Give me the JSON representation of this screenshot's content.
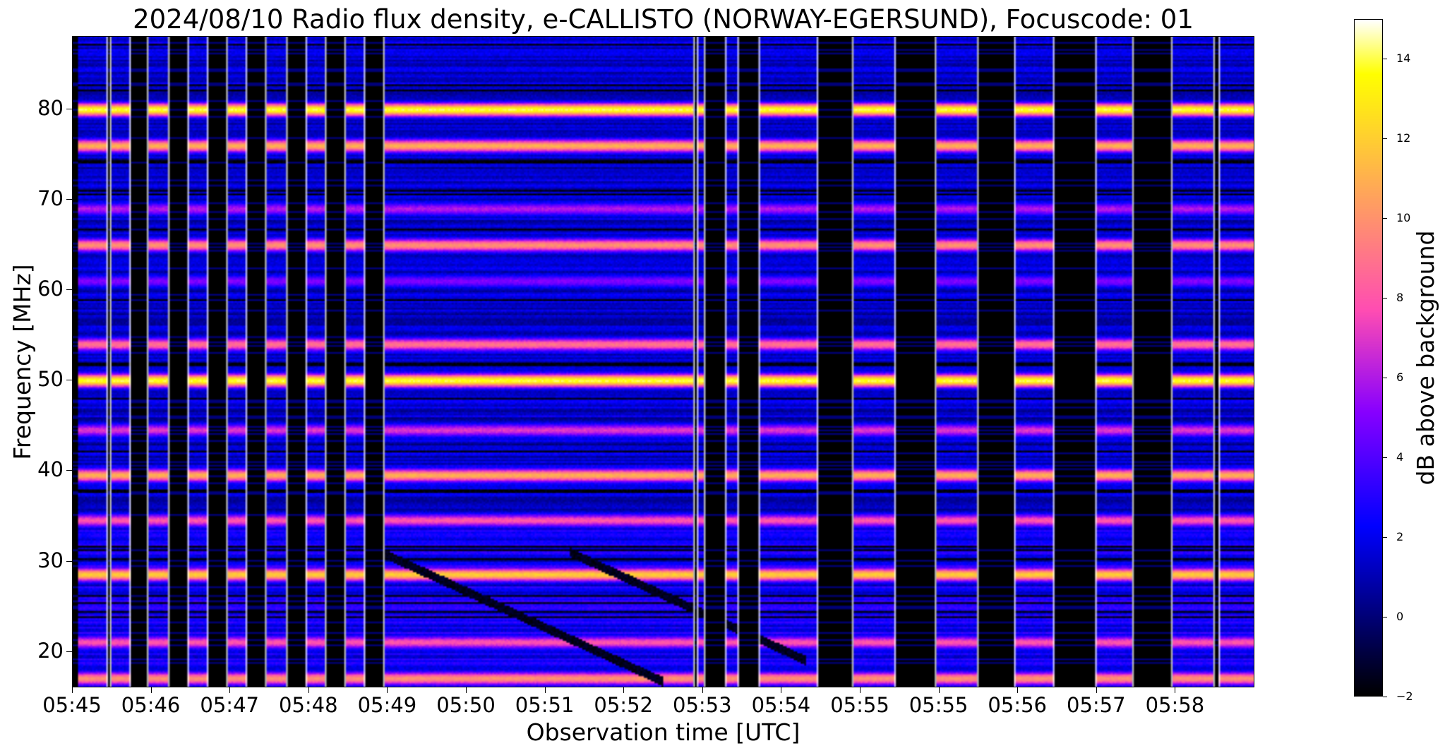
{
  "chart_data": {
    "type": "heatmap",
    "title": "2024/08/10  Radio flux density, e-CALLISTO (NORWAY-EGERSUND), Focuscode: 01",
    "xlabel": "Observation time [UTC]",
    "ylabel": "Frequency [MHz]",
    "colorbar_label": "dB above background",
    "colormap": "gnuplot2",
    "x_tick_labels": [
      "05:45",
      "05:46",
      "05:47",
      "05:48",
      "05:49",
      "05:50",
      "05:51",
      "05:52",
      "05:53",
      "05:54",
      "05:55",
      "05:55",
      "05:56",
      "05:57",
      "05:58"
    ],
    "y_ticks": [
      20,
      30,
      40,
      50,
      60,
      70,
      80
    ],
    "ylim": [
      16,
      88
    ],
    "clim": [
      -2,
      15
    ],
    "colorbar_ticks": [
      -2,
      0,
      2,
      4,
      6,
      8,
      10,
      12,
      14
    ],
    "emission_bands_mhz": [
      {
        "freq": 80.0,
        "db": 14
      },
      {
        "freq": 76.0,
        "db": 11
      },
      {
        "freq": 69.0,
        "db": 6
      },
      {
        "freq": 65.0,
        "db": 10
      },
      {
        "freq": 61.0,
        "db": 5
      },
      {
        "freq": 54.0,
        "db": 9
      },
      {
        "freq": 50.0,
        "db": 14
      },
      {
        "freq": 44.5,
        "db": 7
      },
      {
        "freq": 39.5,
        "db": 11
      },
      {
        "freq": 34.5,
        "db": 8
      },
      {
        "freq": 28.5,
        "db": 12
      },
      {
        "freq": 21.0,
        "db": 8
      },
      {
        "freq": 17.0,
        "db": 10
      }
    ],
    "frequency_sweep_gaps_utc": [
      [
        "05:45:27",
        "05:45:33"
      ],
      [
        "05:45:57",
        "05:46:03"
      ],
      [
        "05:46:27",
        "05:46:33"
      ],
      [
        "05:46:57",
        "05:47:03"
      ],
      [
        "05:47:27",
        "05:47:33"
      ],
      [
        "05:47:57",
        "05:48:03"
      ],
      [
        "05:48:27",
        "05:48:33"
      ]
    ]
  }
}
